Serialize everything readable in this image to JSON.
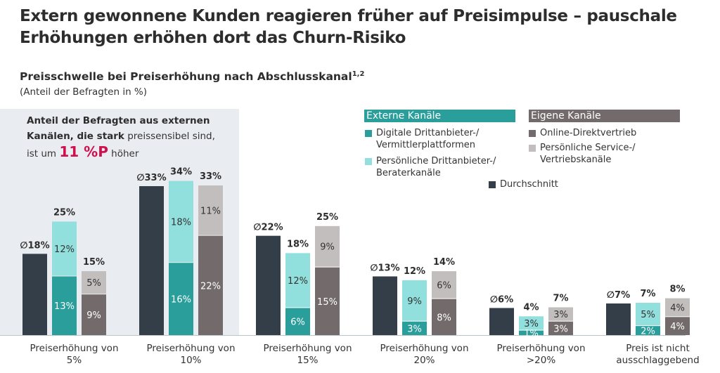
{
  "title_line1": "Extern gewonnene Kunden reagieren früher auf Preisimpulse – pauschale",
  "title_line2": "Erhöhungen erhöhen dort das Churn-Risiko",
  "subtitle": "Preisschwelle bei Preiserhöhung nach Abschlusskanal",
  "subtitle_sup": "1,2",
  "unit": "(Anteil der Befragten in %)",
  "callout": {
    "bold1": "Anteil der Befragten aus externen Kanälen, die stark",
    "normal1": " preissensibel sind,",
    "line3a": "ist um ",
    "highlight": "11 %P",
    "line3b": " höher"
  },
  "legend": {
    "external_header": "Externe Kanäle",
    "own_header": "Eigene Kanäle",
    "digital": "Digitale Drittanbieter-/ Vermittlerplattformen",
    "personal_ext": "Persönliche Drittanbieter-/ Beraterkanäle",
    "online": "Online-Direktvertrieb",
    "personal_own": "Persönliche Service-/ Vertriebskanäle",
    "average": "Durchschnitt"
  },
  "colors": {
    "average": "#333e48",
    "digital": "#2a9e9b",
    "personal_ext": "#92e0dd",
    "online": "#736b6b",
    "personal_own": "#c2bebe",
    "panel": "#e9ecf1",
    "highlight": "#d0104c"
  },
  "chart_data": {
    "type": "bar",
    "categories": [
      "Preiserhöhung von 5%",
      "Preiserhöhung von 10%",
      "Preiserhöhung von 15%",
      "Preiserhöhung von 20%",
      "Preiserhöhung von >20%",
      "Preis ist nicht ausschlaggebend"
    ],
    "average": [
      18,
      33,
      22,
      13,
      6,
      7
    ],
    "average_labels": [
      "∅18%",
      "∅33%",
      "∅22%",
      "∅13%",
      "∅6%",
      "∅7%"
    ],
    "external": {
      "digital": [
        13,
        16,
        6,
        3,
        1,
        2
      ],
      "personal": [
        12,
        18,
        12,
        9,
        3,
        5
      ],
      "total": [
        25,
        34,
        18,
        12,
        4,
        7
      ]
    },
    "own": {
      "online": [
        9,
        22,
        15,
        8,
        3,
        4
      ],
      "personal": [
        5,
        11,
        9,
        6,
        3,
        4
      ],
      "total": [
        15,
        33,
        25,
        14,
        7,
        8
      ]
    },
    "ylim": [
      0,
      35
    ]
  }
}
